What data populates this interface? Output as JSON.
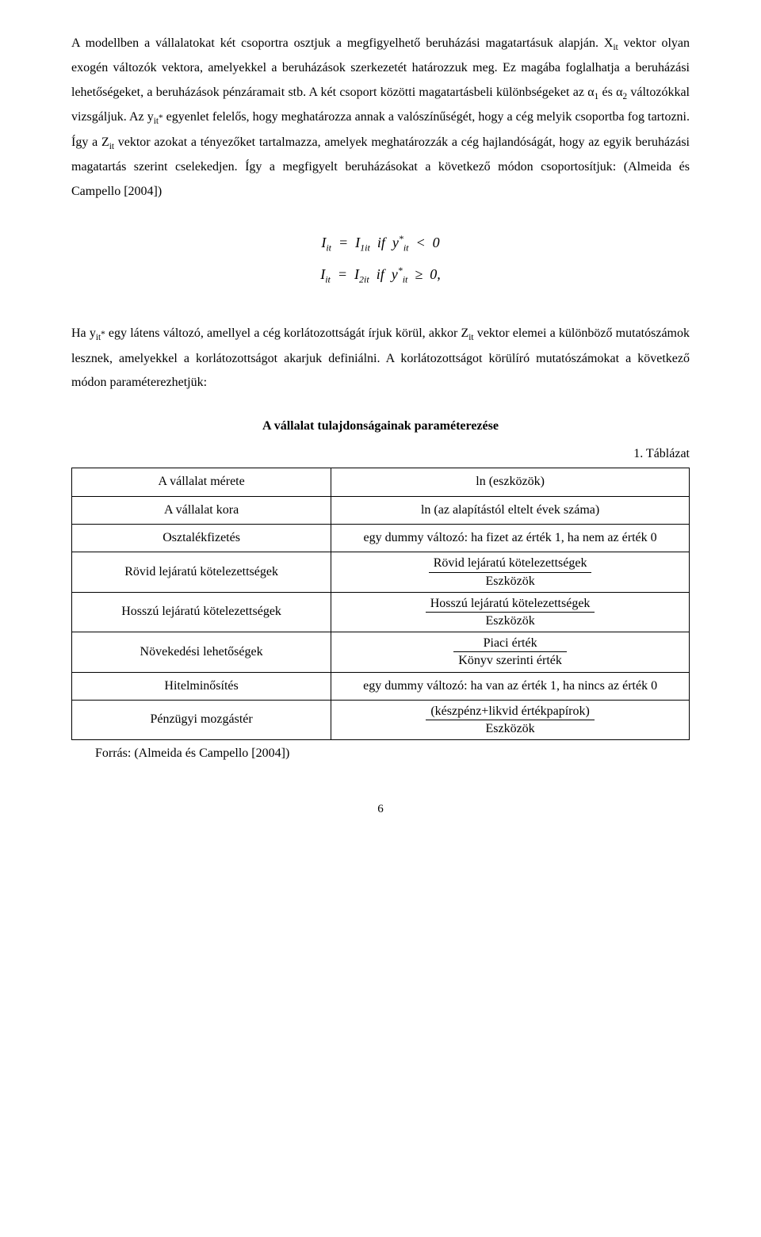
{
  "paragraph1": "A modellben a vállalatokat két csoportra osztjuk a megfigyelhető beruházási magatartásuk alapján. Xit vektor olyan exogén változók vektora, amelyekkel a beruházások szerkezetét határozzuk meg. Ez magába foglalhatja a beruházási lehetőségeket, a beruházások pénzáramait stb. A két csoport közötti magatartásbeli különbségeket az α1 és α2 változókkal vizsgáljuk. Az yit* egyenlet felelős, hogy meghatározza annak a valószínűségét, hogy a cég melyik csoportba fog tartozni. Így a Zit vektor azokat a tényezőket tartalmazza, amelyek meghatározzák a cég hajlandóságát, hogy az egyik beruházási magatartás szerint cselekedjen. Így a megfigyelt beruházásokat a következő módon csoportosítjuk: (Almeida és Campello [2004])",
  "formula": {
    "line1_html": "<i>I<sub>it</sub></i>&nbsp; = &nbsp;<i>I</i><sub>1<i>it</i></sub>&nbsp; if &nbsp;<i>y</i><span class=\"sup-star\">*</span><sub><i>it</i></sub>&nbsp; &lt; &nbsp;0",
    "line2_html": "<i>I<sub>it</sub></i>&nbsp; = &nbsp;<i>I</i><sub>2<i>it</i></sub>&nbsp; if &nbsp;<i>y</i><span class=\"sup-star\">*</span><sub><i>it</i></sub>&nbsp; ≥ &nbsp;0,"
  },
  "paragraph2": "Ha yit* egy látens változó, amellyel a cég korlátozottságát írjuk körül, akkor Zit vektor elemei a különböző mutatószámok lesznek, amelyekkel a korlátozottságot akarjuk definiálni. A korlátozottságot körülíró mutatószámokat a következő módon paraméterezhetjük:",
  "table": {
    "title": "A vállalat tulajdonságainak paraméterezése",
    "label": "1. Táblázat",
    "rows": [
      {
        "left": "A vállalat mérete",
        "right_type": "text",
        "right": "ln (eszközök)"
      },
      {
        "left": "A vállalat kora",
        "right_type": "text",
        "right": "ln (az alapítástól eltelt évek száma)"
      },
      {
        "left": "Osztalékfizetés",
        "right_type": "text",
        "right": "egy dummy változó: ha fizet az érték 1, ha nem az érték 0"
      },
      {
        "left": "Rövid lejáratú kötelezettségek",
        "right_type": "frac",
        "num": "Rövid lejáratú kötelezettségek",
        "den": "Eszközök"
      },
      {
        "left": "Hosszú lejáratú kötelezettségek",
        "right_type": "frac",
        "num": "Hosszú lejáratú kötelezettségek",
        "den": "Eszközök"
      },
      {
        "left": "Növekedési lehetőségek",
        "right_type": "frac",
        "num": "Piaci érték",
        "den": "Könyv szerinti érték"
      },
      {
        "left": "Hitelminősítés",
        "right_type": "text",
        "right": "egy dummy változó: ha van az érték 1, ha nincs az érték 0"
      },
      {
        "left": "Pénzügyi mozgástér",
        "right_type": "frac",
        "num": "(készpénz+likvid értékpapírok)",
        "den": "Eszközök"
      }
    ]
  },
  "source": "Forrás: (Almeida és Campello [2004])",
  "page_number": "6"
}
